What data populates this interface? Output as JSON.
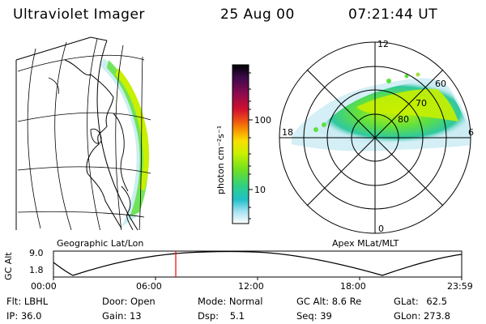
{
  "header": {
    "instrument": "Ultraviolet Imager",
    "date": "25 Aug 00",
    "time": "07:21:44 UT"
  },
  "colorbar": {
    "unit_label": "photon cm⁻²s⁻¹",
    "ticks": [
      "100",
      "10"
    ],
    "colors": [
      "#000000",
      "#3a0a4a",
      "#7a0a5a",
      "#b0003a",
      "#e0202a",
      "#f05a10",
      "#f8a000",
      "#f8e000",
      "#c8f000",
      "#70e020",
      "#30d080",
      "#20c0c8",
      "#a0e0f0",
      "#e8f4f8"
    ]
  },
  "geo_panel": {
    "label": "Geographic Lat/Lon"
  },
  "polar_panel": {
    "label": "Apex MLat/MLT",
    "mlt_labels": {
      "top": "12",
      "bottom": "0",
      "left": "18",
      "right": "6"
    },
    "lat_labels": [
      "60",
      "70",
      "80"
    ]
  },
  "altitude_plot": {
    "ylabel": "GC Alt",
    "y_ticks": [
      "9.0",
      "1.8"
    ],
    "x_ticks": [
      "00:00",
      "06:00",
      "12:00",
      "18:00",
      "23:59"
    ],
    "current_time_color": "#ff0000"
  },
  "info": {
    "filter_label": "Flt:",
    "filter_value": "LBHL",
    "ip_label": "IP:",
    "ip_value": "36.0",
    "door_label": "Door:",
    "door_value": "Open",
    "gain_label": "Gain:",
    "gain_value": "13",
    "mode_label": "Mode:",
    "mode_value": "Normal",
    "dsp_label": "Dsp:",
    "dsp_value": "5.1",
    "gcalt_label": "GC Alt:",
    "gcalt_value": "8.6 Re",
    "seq_label": "Seq:",
    "seq_value": "39",
    "glat_label": "GLat:",
    "glat_value": "62.5",
    "glon_label": "GLon:",
    "glon_value": "273.8"
  }
}
